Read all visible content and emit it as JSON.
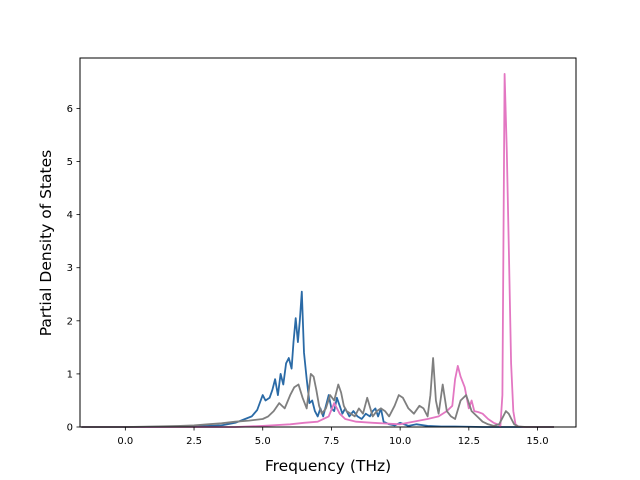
{
  "chart_data": {
    "type": "line",
    "title": "",
    "xlabel": "Frequency (THz)",
    "ylabel": "Partial Density of States",
    "xlim": [
      -1.65,
      16.4
    ],
    "ylim": [
      0,
      6.95
    ],
    "xticks": [
      0.0,
      2.5,
      5.0,
      7.5,
      10.0,
      12.5,
      15.0
    ],
    "xtick_labels": [
      "0.0",
      "2.5",
      "5.0",
      "7.5",
      "10.0",
      "12.5",
      "15.0"
    ],
    "yticks": [
      0,
      1,
      2,
      3,
      4,
      5,
      6
    ],
    "ytick_labels": [
      "0",
      "1",
      "2",
      "3",
      "4",
      "5",
      "6"
    ],
    "grid": false,
    "legend": "none",
    "series": [
      {
        "color": "#2a6aa6",
        "x": [
          -1.6,
          0,
          2.5,
          3.5,
          4.0,
          4.3,
          4.6,
          4.8,
          5.0,
          5.1,
          5.25,
          5.35,
          5.45,
          5.55,
          5.65,
          5.75,
          5.85,
          5.95,
          6.05,
          6.12,
          6.2,
          6.28,
          6.35,
          6.42,
          6.5,
          6.6,
          6.7,
          6.8,
          6.9,
          7.0,
          7.1,
          7.2,
          7.3,
          7.4,
          7.5,
          7.6,
          7.7,
          7.8,
          7.9,
          8.0,
          8.15,
          8.3,
          8.45,
          8.6,
          8.75,
          8.9,
          9.0,
          9.1,
          9.2,
          9.3,
          9.4,
          9.6,
          9.8,
          10.0,
          10.3,
          10.6,
          11.0,
          11.5,
          12.0,
          13.0,
          14.0,
          15.6
        ],
        "y": [
          0,
          0,
          0.01,
          0.03,
          0.08,
          0.14,
          0.2,
          0.32,
          0.6,
          0.5,
          0.55,
          0.7,
          0.9,
          0.6,
          1.0,
          0.8,
          1.2,
          1.3,
          1.1,
          1.6,
          2.05,
          1.6,
          2.0,
          2.55,
          1.4,
          0.9,
          0.45,
          0.5,
          0.3,
          0.2,
          0.35,
          0.2,
          0.4,
          0.6,
          0.35,
          0.3,
          0.55,
          0.4,
          0.25,
          0.35,
          0.2,
          0.3,
          0.2,
          0.15,
          0.25,
          0.2,
          0.3,
          0.35,
          0.2,
          0.35,
          0.1,
          0.05,
          0.03,
          0.08,
          0.02,
          0.05,
          0.02,
          0.01,
          0.01,
          0,
          0,
          0
        ]
      },
      {
        "color": "#e377c2",
        "x": [
          -1.6,
          0,
          4.0,
          5.0,
          6.0,
          6.5,
          7.0,
          7.4,
          7.6,
          7.8,
          8.0,
          8.4,
          9.0,
          10.0,
          11.0,
          11.4,
          11.7,
          11.9,
          12.0,
          12.1,
          12.2,
          12.35,
          12.5,
          12.6,
          12.7,
          12.85,
          13.0,
          13.2,
          13.4,
          13.55,
          13.65,
          13.72,
          13.8,
          13.88,
          13.96,
          14.04,
          14.12,
          14.2,
          14.3,
          14.5,
          15.6
        ],
        "y": [
          0,
          0,
          0,
          0.02,
          0.05,
          0.08,
          0.1,
          0.2,
          0.45,
          0.25,
          0.15,
          0.1,
          0.08,
          0.05,
          0.15,
          0.2,
          0.3,
          0.4,
          0.9,
          1.15,
          0.95,
          0.75,
          0.35,
          0.5,
          0.3,
          0.28,
          0.25,
          0.15,
          0.08,
          0.05,
          0.02,
          0.6,
          6.65,
          5.2,
          3.2,
          1.2,
          0.3,
          0.05,
          0.01,
          0,
          0
        ]
      },
      {
        "color": "#7f7f7f",
        "x": [
          -1.6,
          0,
          1.0,
          2.0,
          2.5,
          3.0,
          3.5,
          4.0,
          4.5,
          5.0,
          5.2,
          5.4,
          5.6,
          5.8,
          6.0,
          6.15,
          6.3,
          6.45,
          6.6,
          6.75,
          6.85,
          6.95,
          7.05,
          7.15,
          7.3,
          7.45,
          7.6,
          7.75,
          7.85,
          7.95,
          8.05,
          8.2,
          8.35,
          8.5,
          8.65,
          8.8,
          9.0,
          9.15,
          9.3,
          9.45,
          9.6,
          9.8,
          9.95,
          10.1,
          10.3,
          10.5,
          10.7,
          10.85,
          11.0,
          11.1,
          11.2,
          11.3,
          11.4,
          11.55,
          11.7,
          11.85,
          12.0,
          12.2,
          12.4,
          12.6,
          12.8,
          13.0,
          13.2,
          13.4,
          13.6,
          13.75,
          13.85,
          13.95,
          14.05,
          14.15,
          14.3,
          14.6,
          15.6
        ],
        "y": [
          0,
          0,
          0.01,
          0.02,
          0.03,
          0.05,
          0.07,
          0.1,
          0.12,
          0.15,
          0.2,
          0.3,
          0.45,
          0.35,
          0.6,
          0.75,
          0.8,
          0.55,
          0.35,
          1.0,
          0.95,
          0.7,
          0.4,
          0.25,
          0.35,
          0.6,
          0.5,
          0.8,
          0.65,
          0.4,
          0.3,
          0.25,
          0.2,
          0.35,
          0.25,
          0.55,
          0.2,
          0.3,
          0.35,
          0.3,
          0.2,
          0.4,
          0.6,
          0.55,
          0.35,
          0.25,
          0.4,
          0.35,
          0.2,
          0.6,
          1.3,
          0.5,
          0.25,
          0.8,
          0.3,
          0.2,
          0.15,
          0.5,
          0.6,
          0.3,
          0.2,
          0.1,
          0.05,
          0.02,
          0.05,
          0.2,
          0.3,
          0.25,
          0.15,
          0.05,
          0.01,
          0,
          0
        ]
      }
    ]
  }
}
